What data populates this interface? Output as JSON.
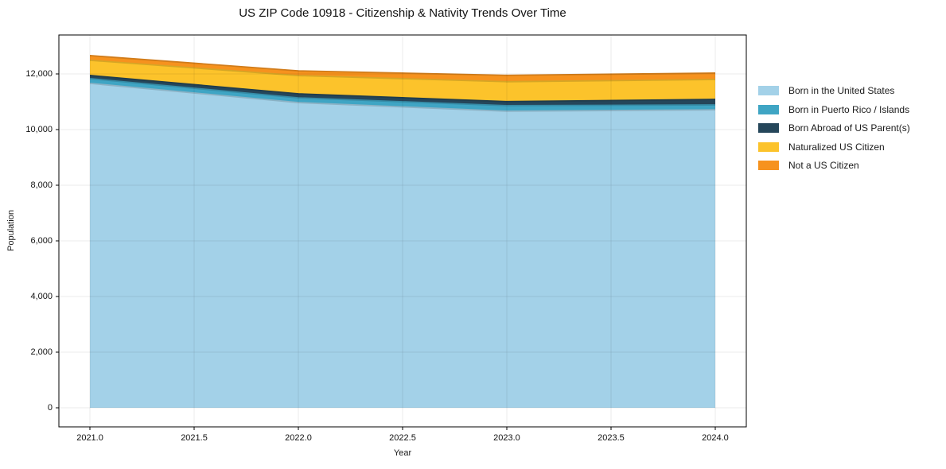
{
  "title": "US ZIP Code 10918 - Citizenship & Nativity Trends Over Time",
  "axes": {
    "xlabel": "Year",
    "ylabel": "Population"
  },
  "chart_data": {
    "type": "area",
    "stacked": true,
    "title": "US ZIP Code 10918 - Citizenship & Nativity Trends Over Time",
    "xlabel": "Year",
    "ylabel": "Population",
    "x": [
      2021,
      2022,
      2023,
      2024
    ],
    "series": [
      {
        "name": "Born in the United States",
        "color": "#a3d1e8",
        "values": [
          11660,
          10970,
          10660,
          10710
        ]
      },
      {
        "name": "Born in Puerto Rico / Islands",
        "color": "#3fa5c4",
        "values": [
          170,
          170,
          200,
          175
        ]
      },
      {
        "name": "Born Abroad of US Parent(s)",
        "color": "#25465a",
        "values": [
          115,
          145,
          145,
          200
        ]
      },
      {
        "name": "Naturalized US Citizen",
        "color": "#fcc32b",
        "values": [
          545,
          655,
          715,
          715
        ]
      },
      {
        "name": "Not a US Citizen",
        "color": "#f6921e",
        "values": [
          170,
          170,
          230,
          230
        ]
      }
    ],
    "totals": [
      12660,
      12110,
      11950,
      12030
    ],
    "xlim": [
      2020.851,
      2024.149
    ],
    "ylim": [
      -685,
      13400
    ],
    "xticks": [
      {
        "value": 2021.0,
        "label": "2021.0"
      },
      {
        "value": 2021.5,
        "label": "2021.5"
      },
      {
        "value": 2022.0,
        "label": "2022.0"
      },
      {
        "value": 2022.5,
        "label": "2022.5"
      },
      {
        "value": 2023.0,
        "label": "2023.0"
      },
      {
        "value": 2023.5,
        "label": "2023.5"
      },
      {
        "value": 2024.0,
        "label": "2024.0"
      }
    ],
    "yticks": [
      {
        "value": 0,
        "label": "0"
      },
      {
        "value": 2000,
        "label": "2,000"
      },
      {
        "value": 4000,
        "label": "4,000"
      },
      {
        "value": 6000,
        "label": "6,000"
      },
      {
        "value": 8000,
        "label": "8,000"
      },
      {
        "value": 10000,
        "label": "10,000"
      },
      {
        "value": 12000,
        "label": "12,000"
      }
    ],
    "grid": true,
    "grid_color": "rgba(0,0,0,0.08)",
    "legend_position": "right",
    "plot_border_color": "#000000"
  }
}
